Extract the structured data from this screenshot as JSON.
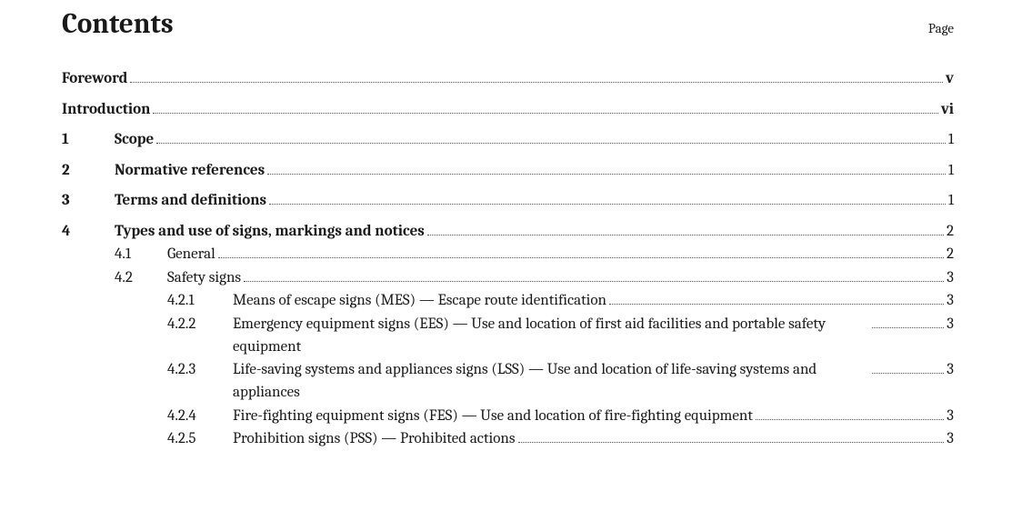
{
  "header": {
    "title": "Contents",
    "page_label": "Page"
  },
  "toc": {
    "foreword": {
      "title": "Foreword",
      "page": "v"
    },
    "introduction": {
      "title": "Introduction",
      "page": "vi"
    },
    "s1": {
      "num": "1",
      "title": "Scope",
      "page": "1"
    },
    "s2": {
      "num": "2",
      "title": "Normative references",
      "page": "1"
    },
    "s3": {
      "num": "3",
      "title": "Terms and definitions",
      "page": "1"
    },
    "s4": {
      "num": "4",
      "title": "Types and use of signs, markings and notices",
      "page": "2"
    },
    "s4_1": {
      "num": "4.1",
      "title": "General",
      "page": "2"
    },
    "s4_2": {
      "num": "4.2",
      "title": "Safety signs",
      "page": "3"
    },
    "s4_2_1": {
      "num": "4.2.1",
      "title": "Means of escape signs (MES) — Escape route identification",
      "page": "3"
    },
    "s4_2_2": {
      "num": "4.2.2",
      "title": "Emergency equipment signs (EES) — Use and location of first aid facilities and portable safety equipment",
      "page": "3"
    },
    "s4_2_3": {
      "num": "4.2.3",
      "title": "Life-saving systems and appliances signs (LSS) — Use and location of life-saving systems and appliances",
      "page": "3"
    },
    "s4_2_4": {
      "num": "4.2.4",
      "title": "Fire-fighting equipment signs (FES) — Use and location of fire-fighting equipment",
      "page": "3"
    },
    "s4_2_5": {
      "num": "4.2.5",
      "title": "Prohibition signs (PSS) — Prohibited actions",
      "page": "3"
    }
  }
}
